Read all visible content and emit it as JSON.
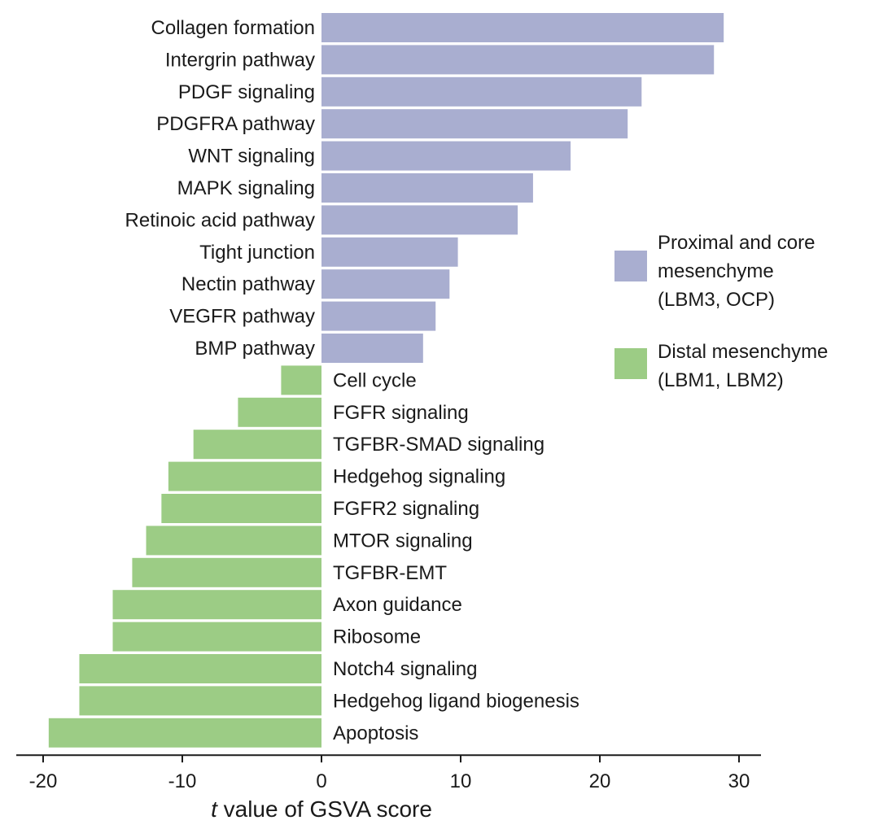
{
  "chart_data": {
    "type": "bar",
    "orientation": "horizontal",
    "xlabel_italic": "t",
    "xlabel_rest": " value of GSVA score",
    "xlim": [
      -22,
      32
    ],
    "xticks": [
      -20,
      -10,
      0,
      10,
      20,
      30
    ],
    "xtick_labels": [
      "-20",
      "-10",
      "0",
      "10",
      "20",
      "30"
    ],
    "colors": {
      "proximal": "#a9aed0",
      "distal": "#9ccc85",
      "axis": "#1a1a1a"
    },
    "legend": [
      {
        "lines": [
          "Proximal and core",
          "mesenchyme",
          "(LBM3, OCP)"
        ],
        "color_key": "proximal"
      },
      {
        "lines": [
          "Distal mesenchyme",
          "(LBM1, LBM2)"
        ],
        "color_key": "distal"
      }
    ],
    "categories": [
      "Collagen formation",
      "Intergrin pathway",
      "PDGF signaling",
      "PDGFRA pathway",
      "WNT signaling",
      "MAPK signaling",
      "Retinoic acid pathway",
      "Tight junction",
      "Nectin pathway",
      "VEGFR pathway",
      "BMP pathway",
      "Cell cycle",
      "FGFR signaling",
      "TGFBR-SMAD signaling",
      "Hedgehog signaling",
      "FGFR2 signaling",
      "MTOR signaling",
      "TGFBR-EMT",
      "Axon guidance",
      "Ribosome",
      "Notch4 signaling",
      "Hedgehog ligand biogenesis",
      "Apoptosis"
    ],
    "series": [
      {
        "name": "Proximal and core mesenchyme (LBM3, OCP)",
        "values": [
          28.9,
          28.2,
          23.0,
          22.0,
          17.9,
          15.2,
          14.1,
          9.8,
          9.2,
          8.2,
          7.3,
          null,
          null,
          null,
          null,
          null,
          null,
          null,
          null,
          null,
          null,
          null,
          null
        ]
      },
      {
        "name": "Distal mesenchyme (LBM1, LBM2)",
        "values": [
          null,
          null,
          null,
          null,
          null,
          null,
          null,
          null,
          null,
          null,
          null,
          -2.9,
          -6.0,
          -9.2,
          -11.0,
          -11.5,
          -12.6,
          -13.6,
          -15.0,
          -15.0,
          -17.4,
          -17.4,
          -19.6
        ]
      }
    ]
  }
}
